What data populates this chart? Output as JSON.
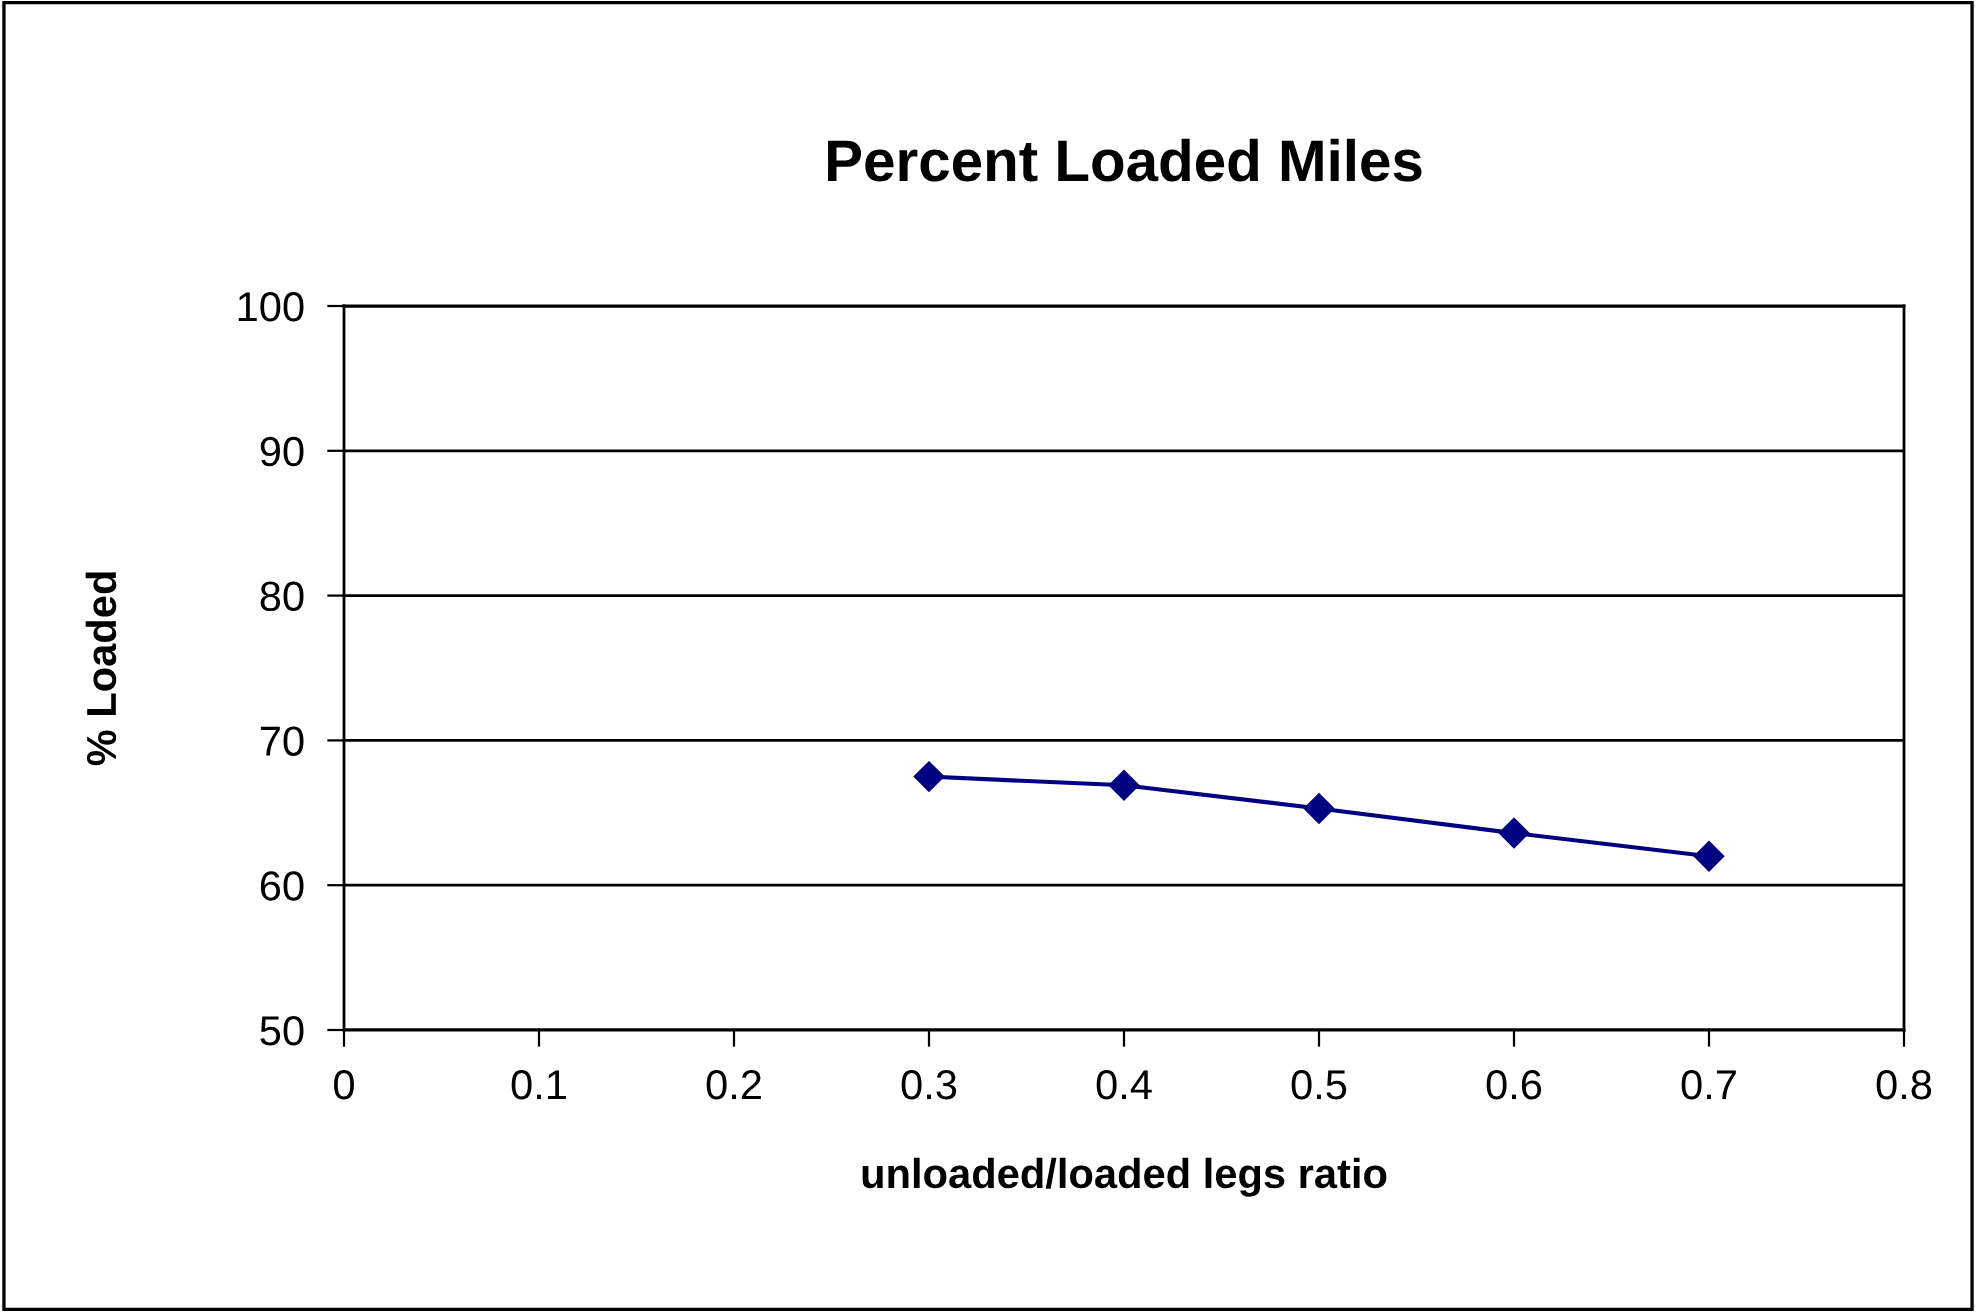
{
  "chart_data": {
    "type": "line",
    "title": "Percent Loaded Miles",
    "xlabel": "unloaded/loaded legs ratio",
    "ylabel": "% Loaded",
    "x": [
      0.3,
      0.4,
      0.5,
      0.6,
      0.7
    ],
    "series": [
      {
        "color": "#000080",
        "values": [
          67.5,
          66.9,
          65.3,
          63.6,
          62.0
        ]
      }
    ],
    "xlim": [
      0,
      0.8
    ],
    "xticks": [
      0,
      0.1,
      0.2,
      0.3,
      0.4,
      0.5,
      0.6,
      0.7,
      0.8
    ],
    "ylim": [
      50,
      100
    ],
    "yticks": [
      50,
      60,
      70,
      80,
      90,
      100
    ],
    "grid": "y",
    "marker": "diamond",
    "line_style": "solid"
  }
}
